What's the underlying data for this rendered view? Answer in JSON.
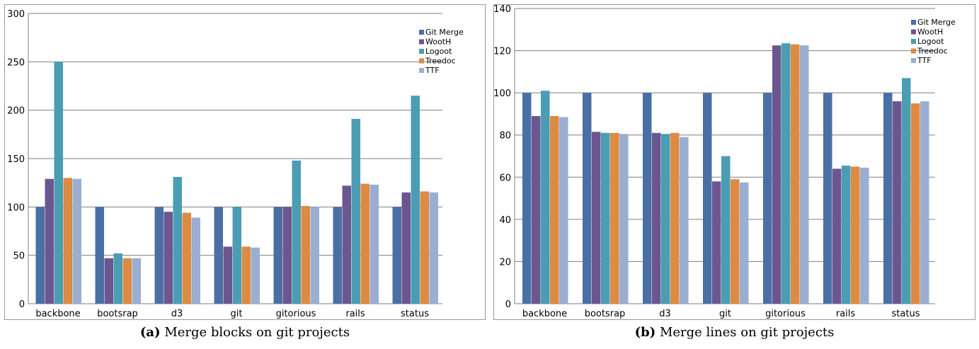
{
  "chart_data": [
    {
      "type": "bar",
      "categories": [
        "backbone",
        "bootsrap",
        "d3",
        "git",
        "gitorious",
        "rails",
        "status"
      ],
      "series": [
        {
          "name": "Git Merge",
          "values": [
            100,
            100,
            100,
            100,
            100,
            100,
            100
          ]
        },
        {
          "name": "WootH",
          "values": [
            129,
            47,
            95,
            59,
            100,
            122,
            115
          ]
        },
        {
          "name": "Logoot",
          "values": [
            250,
            52,
            131,
            100,
            148,
            191,
            215
          ]
        },
        {
          "name": "Treedoc",
          "values": [
            130,
            47,
            94,
            59,
            101,
            124,
            116
          ]
        },
        {
          "name": "TTF",
          "values": [
            129,
            47,
            89,
            58,
            100,
            123,
            115
          ]
        }
      ],
      "ylim": [
        0,
        300
      ],
      "yticks": [
        "0",
        "50",
        "100",
        "150",
        "200",
        "250",
        "300"
      ],
      "caption_label": "(a)",
      "caption_text": "Merge blocks on git projects",
      "legend": "top-right",
      "grid": "horizontal"
    },
    {
      "type": "bar",
      "categories": [
        "backbone",
        "bootsrap",
        "d3",
        "git",
        "gitorious",
        "rails",
        "status"
      ],
      "series": [
        {
          "name": "Git Merge",
          "values": [
            100,
            100,
            100,
            100,
            100,
            100,
            100
          ]
        },
        {
          "name": "WootH",
          "values": [
            89,
            81.5,
            81,
            58,
            122.5,
            64,
            96
          ]
        },
        {
          "name": "Logoot",
          "values": [
            101,
            81,
            80.5,
            70,
            123.5,
            65.5,
            107
          ]
        },
        {
          "name": "Treedoc",
          "values": [
            89,
            81,
            81,
            59,
            123,
            65,
            95
          ]
        },
        {
          "name": "TTF",
          "values": [
            88.5,
            80.5,
            79,
            57.5,
            122.5,
            64.5,
            96
          ]
        }
      ],
      "ylim": [
        0,
        140
      ],
      "yticks": [
        "0",
        "20",
        "40",
        "60",
        "80",
        "100",
        "120",
        "140"
      ],
      "caption_label": "(b)",
      "caption_text": "Merge lines on git projects",
      "legend": "top-right",
      "grid": "horizontal"
    }
  ],
  "colors": {
    "Git Merge": "#4a6fa5",
    "WootH": "#6c5690",
    "Logoot": "#4a9db3",
    "Treedoc": "#dd8a42",
    "TTF": "#9aaed1",
    "grid": "#7f7f7f",
    "frame": "#9a9a9a"
  }
}
